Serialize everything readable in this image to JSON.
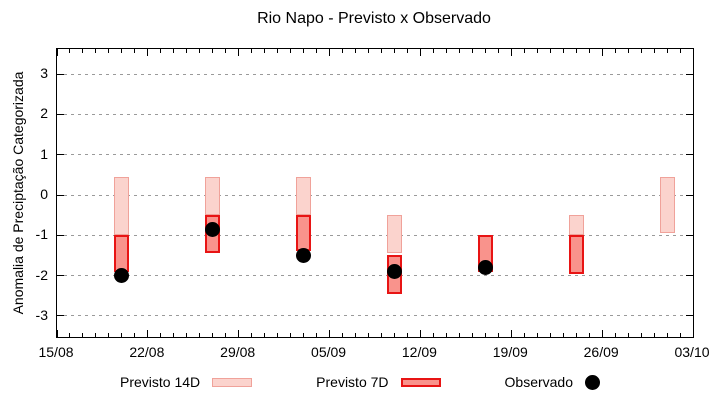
{
  "chart_data": {
    "type": "bar",
    "subtype": "range-bars-with-observed-points",
    "title": "Rio Napo - Previsto x Observado",
    "ylabel": "Anomalia de Preciptação Categorizada",
    "xlabel": "",
    "grid": "dotted-horizontal",
    "legend_position": "bottom",
    "x_axis": {
      "tick_labels": [
        "15/08",
        "22/08",
        "29/08",
        "05/09",
        "12/09",
        "19/09",
        "26/09",
        "03/10"
      ],
      "tick_days": [
        0,
        7,
        14,
        21,
        28,
        35,
        42,
        49
      ],
      "total_days": 49,
      "minor_tick_every_days": 1
    },
    "y_axis": {
      "tick_values": [
        3,
        2,
        1,
        0,
        -1,
        -2,
        -3
      ],
      "range_shown": [
        -3.52,
        3.62
      ]
    },
    "series": [
      {
        "name": "Previsto 14D",
        "type": "range_bar",
        "fill_color": "#fbd3cd",
        "border_color": "#f0a29a",
        "bars": [
          {
            "date": "20/08",
            "day": 5,
            "top": 0.45,
            "bottom": -1.0
          },
          {
            "date": "27/08",
            "day": 12,
            "top": 0.45,
            "bottom": -0.5
          },
          {
            "date": "03/09",
            "day": 19,
            "top": 0.45,
            "bottom": -0.5
          },
          {
            "date": "10/09",
            "day": 26,
            "top": -0.5,
            "bottom": -1.45
          },
          {
            "date": "24/09",
            "day": 40,
            "top": -0.5,
            "bottom": -1.0
          },
          {
            "date": "01/10",
            "day": 47,
            "top": 0.45,
            "bottom": -0.95
          }
        ]
      },
      {
        "name": "Previsto 7D",
        "type": "range_bar",
        "fill_color": "#f9938c",
        "border_color": "#e81414",
        "bars": [
          {
            "date": "20/08",
            "day": 5,
            "top": -1.0,
            "bottom": -1.9
          },
          {
            "date": "27/08",
            "day": 12,
            "top": -0.5,
            "bottom": -1.45
          },
          {
            "date": "03/09",
            "day": 19,
            "top": -0.5,
            "bottom": -1.4
          },
          {
            "date": "10/09",
            "day": 26,
            "top": -1.5,
            "bottom": -2.45
          },
          {
            "date": "17/09",
            "day": 33,
            "top": -1.0,
            "bottom": -1.9
          },
          {
            "date": "24/09",
            "day": 40,
            "top": -1.0,
            "bottom": -1.95
          }
        ]
      },
      {
        "name": "Observado",
        "type": "point",
        "color": "#000000",
        "points": [
          {
            "date": "20/08",
            "day": 5,
            "value": -2.0
          },
          {
            "date": "27/08",
            "day": 12,
            "value": -0.85
          },
          {
            "date": "03/09",
            "day": 19,
            "value": -1.5
          },
          {
            "date": "10/09",
            "day": 26,
            "value": -1.9
          },
          {
            "date": "17/09",
            "day": 33,
            "value": -1.8
          }
        ]
      }
    ]
  }
}
